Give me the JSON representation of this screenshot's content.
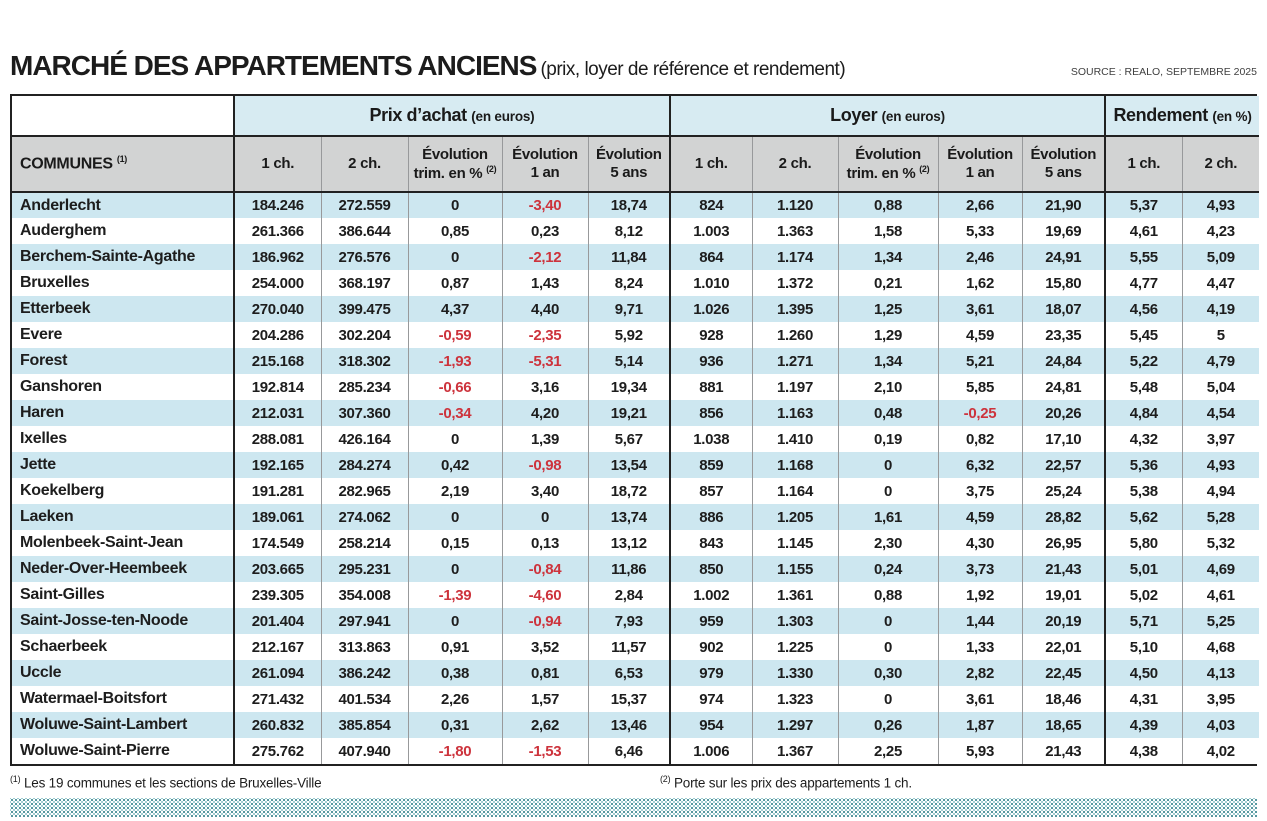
{
  "header": {
    "title": "MARCHÉ DES APPARTEMENTS ANCIENS",
    "subtitle": "(prix, loyer de référence et rendement)",
    "source": "SOURCE : REALO, SEPTEMBRE 2025"
  },
  "palette": {
    "group_header_bg": "#d7ebf2",
    "subheader_bg": "#d2d3d3",
    "row_stripe_blue": "#cde7f0",
    "negative_red": "#cd333c",
    "border_dark": "#212121",
    "dots_teal": "#35858d"
  },
  "table": {
    "groups": [
      {
        "label": "Prix d’achat",
        "unit": "(en euros)"
      },
      {
        "label": "Loyer",
        "unit": "(en euros)"
      },
      {
        "label": "Rendement",
        "unit": "(en %)"
      }
    ],
    "communes_header": {
      "label": "COMMUNES",
      "note": "(1)"
    },
    "subheaders": [
      {
        "l1": "1 ch."
      },
      {
        "l1": "2 ch."
      },
      {
        "l1": "Évolution",
        "l2": "trim. en %",
        "sup": "(2)"
      },
      {
        "l1": "Évolution",
        "l2": "1 an"
      },
      {
        "l1": "Évolution",
        "l2": "5 ans"
      },
      {
        "l1": "1 ch."
      },
      {
        "l1": "2 ch."
      },
      {
        "l1": "Évolution",
        "l2": "trim. en %",
        "sup": "(2)"
      },
      {
        "l1": "Évolution",
        "l2": "1 an"
      },
      {
        "l1": "Évolution",
        "l2": "5 ans"
      },
      {
        "l1": "1 ch."
      },
      {
        "l1": "2 ch."
      }
    ],
    "rows": [
      {
        "commune": "Anderlecht",
        "prix": [
          "184.246",
          "272.559",
          "0",
          "-3,40",
          "18,74"
        ],
        "loyer": [
          "824",
          "1.120",
          "0,88",
          "2,66",
          "21,90"
        ],
        "rendement": [
          "5,37",
          "4,93"
        ]
      },
      {
        "commune": "Auderghem",
        "prix": [
          "261.366",
          "386.644",
          "0,85",
          "0,23",
          "8,12"
        ],
        "loyer": [
          "1.003",
          "1.363",
          "1,58",
          "5,33",
          "19,69"
        ],
        "rendement": [
          "4,61",
          "4,23"
        ]
      },
      {
        "commune": "Berchem-Sainte-Agathe",
        "prix": [
          "186.962",
          "276.576",
          "0",
          "-2,12",
          "11,84"
        ],
        "loyer": [
          "864",
          "1.174",
          "1,34",
          "2,46",
          "24,91"
        ],
        "rendement": [
          "5,55",
          "5,09"
        ]
      },
      {
        "commune": "Bruxelles",
        "prix": [
          "254.000",
          "368.197",
          "0,87",
          "1,43",
          "8,24"
        ],
        "loyer": [
          "1.010",
          "1.372",
          "0,21",
          "1,62",
          "15,80"
        ],
        "rendement": [
          "4,77",
          "4,47"
        ]
      },
      {
        "commune": "Etterbeek",
        "prix": [
          "270.040",
          "399.475",
          "4,37",
          "4,40",
          "9,71"
        ],
        "loyer": [
          "1.026",
          "1.395",
          "1,25",
          "3,61",
          "18,07"
        ],
        "rendement": [
          "4,56",
          "4,19"
        ]
      },
      {
        "commune": "Evere",
        "prix": [
          "204.286",
          "302.204",
          "-0,59",
          "-2,35",
          "5,92"
        ],
        "loyer": [
          "928",
          "1.260",
          "1,29",
          "4,59",
          "23,35"
        ],
        "rendement": [
          "5,45",
          "5"
        ]
      },
      {
        "commune": "Forest",
        "prix": [
          "215.168",
          "318.302",
          "-1,93",
          "-5,31",
          "5,14"
        ],
        "loyer": [
          "936",
          "1.271",
          "1,34",
          "5,21",
          "24,84"
        ],
        "rendement": [
          "5,22",
          "4,79"
        ]
      },
      {
        "commune": "Ganshoren",
        "prix": [
          "192.814",
          "285.234",
          "-0,66",
          "3,16",
          "19,34"
        ],
        "loyer": [
          "881",
          "1.197",
          "2,10",
          "5,85",
          "24,81"
        ],
        "rendement": [
          "5,48",
          "5,04"
        ]
      },
      {
        "commune": "Haren",
        "prix": [
          "212.031",
          "307.360",
          "-0,34",
          "4,20",
          "19,21"
        ],
        "loyer": [
          "856",
          "1.163",
          "0,48",
          "-0,25",
          "20,26"
        ],
        "rendement": [
          "4,84",
          "4,54"
        ]
      },
      {
        "commune": "Ixelles",
        "prix": [
          "288.081",
          "426.164",
          "0",
          "1,39",
          "5,67"
        ],
        "loyer": [
          "1.038",
          "1.410",
          "0,19",
          "0,82",
          "17,10"
        ],
        "rendement": [
          "4,32",
          "3,97"
        ]
      },
      {
        "commune": "Jette",
        "prix": [
          "192.165",
          "284.274",
          "0,42",
          "-0,98",
          "13,54"
        ],
        "loyer": [
          "859",
          "1.168",
          "0",
          "6,32",
          "22,57"
        ],
        "rendement": [
          "5,36",
          "4,93"
        ]
      },
      {
        "commune": "Koekelberg",
        "prix": [
          "191.281",
          "282.965",
          "2,19",
          "3,40",
          "18,72"
        ],
        "loyer": [
          "857",
          "1.164",
          "0",
          "3,75",
          "25,24"
        ],
        "rendement": [
          "5,38",
          "4,94"
        ]
      },
      {
        "commune": "Laeken",
        "prix": [
          "189.061",
          "274.062",
          "0",
          "0",
          "13,74"
        ],
        "loyer": [
          "886",
          "1.205",
          "1,61",
          "4,59",
          "28,82"
        ],
        "rendement": [
          "5,62",
          "5,28"
        ]
      },
      {
        "commune": "Molenbeek-Saint-Jean",
        "prix": [
          "174.549",
          "258.214",
          "0,15",
          "0,13",
          "13,12"
        ],
        "loyer": [
          "843",
          "1.145",
          "2,30",
          "4,30",
          "26,95"
        ],
        "rendement": [
          "5,80",
          "5,32"
        ]
      },
      {
        "commune": "Neder-Over-Heembeek",
        "prix": [
          "203.665",
          "295.231",
          "0",
          "-0,84",
          "11,86"
        ],
        "loyer": [
          "850",
          "1.155",
          "0,24",
          "3,73",
          "21,43"
        ],
        "rendement": [
          "5,01",
          "4,69"
        ]
      },
      {
        "commune": "Saint-Gilles",
        "prix": [
          "239.305",
          "354.008",
          "-1,39",
          "-4,60",
          "2,84"
        ],
        "loyer": [
          "1.002",
          "1.361",
          "0,88",
          "1,92",
          "19,01"
        ],
        "rendement": [
          "5,02",
          "4,61"
        ]
      },
      {
        "commune": "Saint-Josse-ten-Noode",
        "prix": [
          "201.404",
          "297.941",
          "0",
          "-0,94",
          "7,93"
        ],
        "loyer": [
          "959",
          "1.303",
          "0",
          "1,44",
          "20,19"
        ],
        "rendement": [
          "5,71",
          "5,25"
        ]
      },
      {
        "commune": "Schaerbeek",
        "prix": [
          "212.167",
          "313.863",
          "0,91",
          "3,52",
          "11,57"
        ],
        "loyer": [
          "902",
          "1.225",
          "0",
          "1,33",
          "22,01"
        ],
        "rendement": [
          "5,10",
          "4,68"
        ]
      },
      {
        "commune": "Uccle",
        "prix": [
          "261.094",
          "386.242",
          "0,38",
          "0,81",
          "6,53"
        ],
        "loyer": [
          "979",
          "1.330",
          "0,30",
          "2,82",
          "22,45"
        ],
        "rendement": [
          "4,50",
          "4,13"
        ]
      },
      {
        "commune": "Watermael-Boitsfort",
        "prix": [
          "271.432",
          "401.534",
          "2,26",
          "1,57",
          "15,37"
        ],
        "loyer": [
          "974",
          "1.323",
          "0",
          "3,61",
          "18,46"
        ],
        "rendement": [
          "4,31",
          "3,95"
        ]
      },
      {
        "commune": "Woluwe-Saint-Lambert",
        "prix": [
          "260.832",
          "385.854",
          "0,31",
          "2,62",
          "13,46"
        ],
        "loyer": [
          "954",
          "1.297",
          "0,26",
          "1,87",
          "18,65"
        ],
        "rendement": [
          "4,39",
          "4,03"
        ]
      },
      {
        "commune": "Woluwe-Saint-Pierre",
        "prix": [
          "275.762",
          "407.940",
          "-1,80",
          "-1,53",
          "6,46"
        ],
        "loyer": [
          "1.006",
          "1.367",
          "2,25",
          "5,93",
          "21,43"
        ],
        "rendement": [
          "4,38",
          "4,02"
        ]
      }
    ]
  },
  "footnotes": {
    "note1": {
      "sup": "(1)",
      "text": "Les 19 communes et les sections de Bruxelles-Ville"
    },
    "note2": {
      "sup": "(2)",
      "text": "Porte sur les prix des appartements 1 ch."
    }
  }
}
